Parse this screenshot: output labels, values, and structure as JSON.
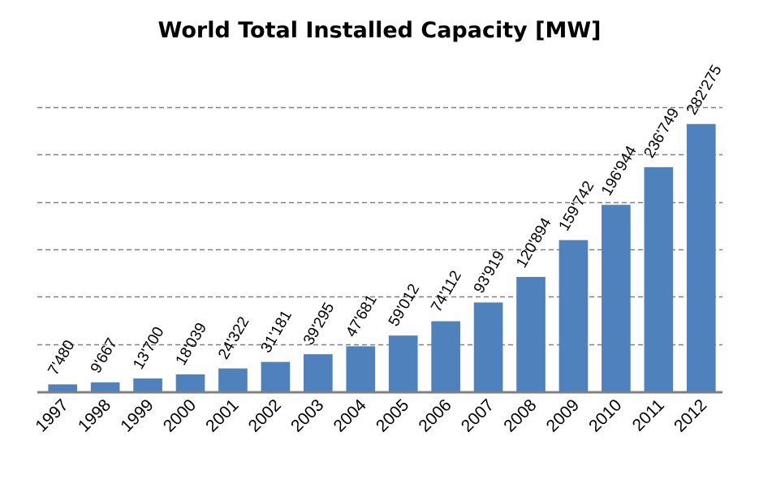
{
  "chart_data": {
    "type": "bar",
    "title": "World Total Installed Capacity [MW]",
    "xlabel": "",
    "ylabel": "",
    "categories": [
      "1997",
      "1998",
      "1999",
      "2000",
      "2001",
      "2002",
      "2003",
      "2004",
      "2005",
      "2006",
      "2007",
      "2008",
      "2009",
      "2010",
      "2011",
      "2012"
    ],
    "values": [
      7480,
      9667,
      13700,
      18039,
      24322,
      31181,
      39295,
      47681,
      59012,
      74112,
      93919,
      120894,
      159742,
      196944,
      236749,
      282275
    ],
    "data_labels": [
      "7'480",
      "9'667",
      "13'700",
      "18'039",
      "24'322",
      "31'181",
      "39'295",
      "47'681",
      "59'012",
      "74'112",
      "93'919",
      "120'894",
      "159'742",
      "196'944",
      "236'749",
      "282'275"
    ],
    "ylim": [
      0,
      300000
    ],
    "y_gridlines": [
      50000,
      100000,
      150000,
      200000,
      250000,
      300000
    ],
    "grid": "dashed horizontal",
    "y_tick_labels_shown": false,
    "bar_color": "#4F81BD",
    "grid_color": "#808080",
    "axis_color": "#808080"
  }
}
